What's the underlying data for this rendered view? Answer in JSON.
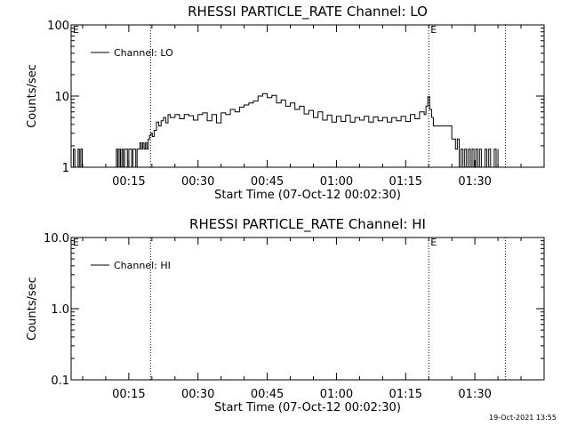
{
  "footer": {
    "timestamp": "19-Oct-2021 13:55"
  },
  "chart_data": [
    {
      "type": "line",
      "title": "RHESSI PARTICLE_RATE Channel: LO",
      "xlabel": "Start Time (07-Oct-12 00:02:30)",
      "ylabel": "Counts/sec",
      "yscale": "log",
      "ylim": [
        1,
        100
      ],
      "xlim_minutes": [
        2.5,
        105
      ],
      "xticks": [
        {
          "minutes": 15,
          "label": "00:15"
        },
        {
          "minutes": 30,
          "label": "00:30"
        },
        {
          "minutes": 45,
          "label": "00:45"
        },
        {
          "minutes": 60,
          "label": "01:00"
        },
        {
          "minutes": 75,
          "label": "01:15"
        },
        {
          "minutes": 90,
          "label": "01:30"
        }
      ],
      "yticks": [
        {
          "value": 1,
          "label": "1"
        },
        {
          "value": 10,
          "label": "10"
        },
        {
          "value": 100,
          "label": "100"
        }
      ],
      "event_lines": [
        {
          "minutes": 19.7,
          "label": ""
        },
        {
          "minutes": 80.0,
          "label": "E"
        },
        {
          "minutes": 96.6,
          "label": ""
        }
      ],
      "left_marker": "E",
      "legend": {
        "label": "Channel: LO",
        "position": "top-left"
      },
      "series": [
        {
          "name": "Channel: LO",
          "x": [
            2.5,
            3.0,
            3.3,
            3.6,
            4.0,
            4.3,
            4.6,
            4.9,
            12.0,
            12.3,
            12.6,
            12.9,
            13.2,
            13.5,
            13.8,
            14.1,
            14.4,
            14.7,
            15.0,
            15.3,
            15.6,
            15.9,
            16.2,
            16.5,
            16.8,
            17.1,
            17.4,
            17.7,
            18.0,
            18.3,
            18.6,
            18.9,
            19.2,
            19.5,
            19.8,
            20.1,
            20.5,
            21.0,
            21.5,
            22.0,
            22.5,
            23.0,
            23.5,
            24.0,
            25.0,
            26.0,
            27.0,
            28.0,
            29.0,
            30.0,
            31.0,
            32.0,
            33.0,
            34.0,
            35.0,
            36.0,
            37.0,
            38.0,
            39.0,
            40.0,
            41.0,
            42.0,
            43.0,
            44.0,
            45.0,
            46.0,
            47.0,
            48.0,
            49.0,
            50.0,
            51.0,
            52.0,
            53.0,
            54.0,
            55.0,
            56.0,
            57.0,
            58.0,
            59.0,
            60.0,
            61.0,
            62.0,
            63.0,
            64.0,
            65.0,
            66.0,
            67.0,
            68.0,
            69.0,
            70.0,
            71.0,
            72.0,
            73.0,
            74.0,
            75.0,
            76.0,
            77.0,
            78.0,
            79.0,
            79.4,
            79.8,
            80.2,
            80.6,
            81.0,
            81.5,
            82.0,
            83.0,
            84.0,
            84.5,
            85.0,
            85.4,
            85.8,
            86.2,
            86.6,
            87.0,
            87.4,
            87.8,
            88.2,
            88.6,
            89.0,
            89.4,
            89.8,
            90.2,
            90.6,
            91.0,
            91.4,
            91.8,
            92.2,
            92.6,
            93.0,
            93.4,
            93.8,
            94.2,
            94.6,
            95.0
          ],
          "y": [
            1,
            1.8,
            1,
            1,
            1.8,
            1,
            1.8,
            1,
            1,
            1.8,
            1,
            1.8,
            1,
            1.8,
            1,
            1.8,
            1.8,
            1,
            1.8,
            1.8,
            1,
            1.8,
            1.8,
            1,
            1.8,
            1.8,
            2.2,
            1.8,
            2.2,
            1.8,
            2.2,
            1.8,
            2.5,
            2.8,
            3.0,
            2.7,
            3.3,
            4.3,
            3.8,
            4.5,
            5.0,
            4.2,
            5.5,
            5.0,
            5.5,
            4.8,
            5.5,
            5.3,
            4.6,
            5.5,
            5.8,
            4.5,
            5.5,
            4.2,
            5.8,
            5.5,
            6.5,
            6.0,
            7.0,
            7.5,
            8.0,
            8.5,
            10.0,
            10.8,
            9.5,
            10.2,
            8.0,
            8.8,
            7.2,
            8.0,
            6.5,
            7.2,
            5.6,
            6.3,
            5.0,
            6.0,
            4.6,
            5.4,
            4.3,
            5.2,
            4.4,
            5.4,
            4.3,
            5.0,
            4.6,
            5.2,
            4.3,
            5.1,
            4.5,
            5.0,
            4.3,
            5.0,
            4.5,
            5.2,
            4.4,
            5.5,
            4.8,
            6.0,
            5.5,
            7.2,
            9.8,
            6.5,
            5.0,
            3.8,
            3.8,
            3.8,
            3.8,
            3.8,
            3.8,
            2.5,
            2.5,
            1.8,
            2.5,
            1,
            1.8,
            1,
            1.8,
            1,
            1.8,
            1,
            1.8,
            1,
            1.8,
            1,
            1.8,
            1,
            1,
            1.8,
            1,
            1.8,
            1,
            1,
            1.8,
            1,
            1.8
          ]
        }
      ]
    },
    {
      "type": "line",
      "title": "RHESSI PARTICLE_RATE Channel: HI",
      "xlabel": "Start Time (07-Oct-12 00:02:30)",
      "ylabel": "Counts/sec",
      "yscale": "log",
      "ylim": [
        0.1,
        10
      ],
      "xlim_minutes": [
        2.5,
        105
      ],
      "xticks": [
        {
          "minutes": 15,
          "label": "00:15"
        },
        {
          "minutes": 30,
          "label": "00:30"
        },
        {
          "minutes": 45,
          "label": "00:45"
        },
        {
          "minutes": 60,
          "label": "01:00"
        },
        {
          "minutes": 75,
          "label": "01:15"
        },
        {
          "minutes": 90,
          "label": "01:30"
        }
      ],
      "yticks": [
        {
          "value": 0.1,
          "label": "0.1"
        },
        {
          "value": 1,
          "label": "1.0"
        },
        {
          "value": 10,
          "label": "10.0"
        }
      ],
      "event_lines": [
        {
          "minutes": 19.7,
          "label": ""
        },
        {
          "minutes": 80.0,
          "label": "E"
        },
        {
          "minutes": 96.6,
          "label": ""
        }
      ],
      "left_marker": "E",
      "legend": {
        "label": "Channel: HI",
        "position": "top-left"
      },
      "series": [
        {
          "name": "Channel: HI",
          "x": [],
          "y": []
        }
      ]
    }
  ]
}
